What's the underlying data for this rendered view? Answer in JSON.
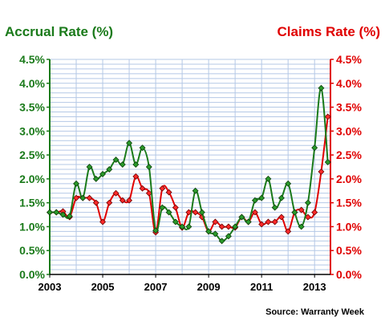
{
  "chart_data": {
    "type": "line",
    "left_axis_title": "Accrual Rate (%)",
    "right_axis_title": "Claims Rate (%)",
    "source": "Source: Warranty Week",
    "colors": {
      "accrual": "#1a7a1a",
      "claims": "#e00000",
      "grid": "#b4c8e6"
    },
    "grid": true,
    "xlim": [
      2003,
      2013.6
    ],
    "ylim": [
      0,
      4.5
    ],
    "x_ticks": [
      {
        "value": 2003,
        "label": "2003"
      },
      {
        "value": 2005,
        "label": "2005"
      },
      {
        "value": 2007,
        "label": "2007"
      },
      {
        "value": 2009,
        "label": "2009"
      },
      {
        "value": 2011,
        "label": "2011"
      },
      {
        "value": 2013,
        "label": "2013"
      }
    ],
    "y_ticks": [
      {
        "value": 0,
        "label": "0.0%"
      },
      {
        "value": 0.5,
        "label": "0.5%"
      },
      {
        "value": 1,
        "label": "1.0%"
      },
      {
        "value": 1.5,
        "label": "1.5%"
      },
      {
        "value": 2,
        "label": "2.0%"
      },
      {
        "value": 2.5,
        "label": "2.5%"
      },
      {
        "value": 3,
        "label": "3.0%"
      },
      {
        "value": 3.5,
        "label": "3.5%"
      },
      {
        "value": 4,
        "label": "4.0%"
      },
      {
        "value": 4.5,
        "label": "4.5%"
      }
    ],
    "x": [
      2003.0,
      2003.25,
      2003.5,
      2003.75,
      2004.0,
      2004.25,
      2004.5,
      2004.75,
      2005.0,
      2005.25,
      2005.5,
      2005.75,
      2006.0,
      2006.25,
      2006.5,
      2006.75,
      2007.0,
      2007.25,
      2007.5,
      2007.75,
      2008.0,
      2008.25,
      2008.5,
      2008.75,
      2009.0,
      2009.25,
      2009.5,
      2009.75,
      2010.0,
      2010.25,
      2010.5,
      2010.75,
      2011.0,
      2011.25,
      2011.5,
      2011.75,
      2012.0,
      2012.25,
      2012.5,
      2012.75,
      2013.0,
      2013.25,
      2013.5
    ],
    "series": [
      {
        "name": "Accrual Rate (%)",
        "axis": "left",
        "values": [
          1.3,
          1.3,
          1.25,
          1.22,
          1.9,
          1.6,
          2.25,
          2.0,
          2.1,
          2.2,
          2.4,
          2.3,
          2.75,
          2.3,
          2.65,
          2.25,
          0.92,
          1.4,
          1.3,
          1.1,
          1.0,
          1.0,
          1.75,
          1.3,
          0.9,
          0.85,
          0.7,
          0.8,
          1.0,
          1.2,
          1.1,
          1.55,
          1.6,
          2.0,
          1.4,
          1.6,
          1.9,
          1.3,
          1.0,
          1.5,
          2.65,
          3.9,
          2.35
        ]
      },
      {
        "name": "Claims Rate (%)",
        "axis": "right",
        "values": [
          1.3,
          1.3,
          1.32,
          1.2,
          1.6,
          1.6,
          1.6,
          1.5,
          1.1,
          1.5,
          1.7,
          1.55,
          1.55,
          2.05,
          1.8,
          1.7,
          0.88,
          1.8,
          1.72,
          1.4,
          0.98,
          1.3,
          1.3,
          1.2,
          0.9,
          1.1,
          1.0,
          1.0,
          0.98,
          1.2,
          1.1,
          1.3,
          1.05,
          1.1,
          1.1,
          1.2,
          0.9,
          1.3,
          1.35,
          1.2,
          1.3,
          2.15,
          3.3
        ]
      }
    ]
  }
}
